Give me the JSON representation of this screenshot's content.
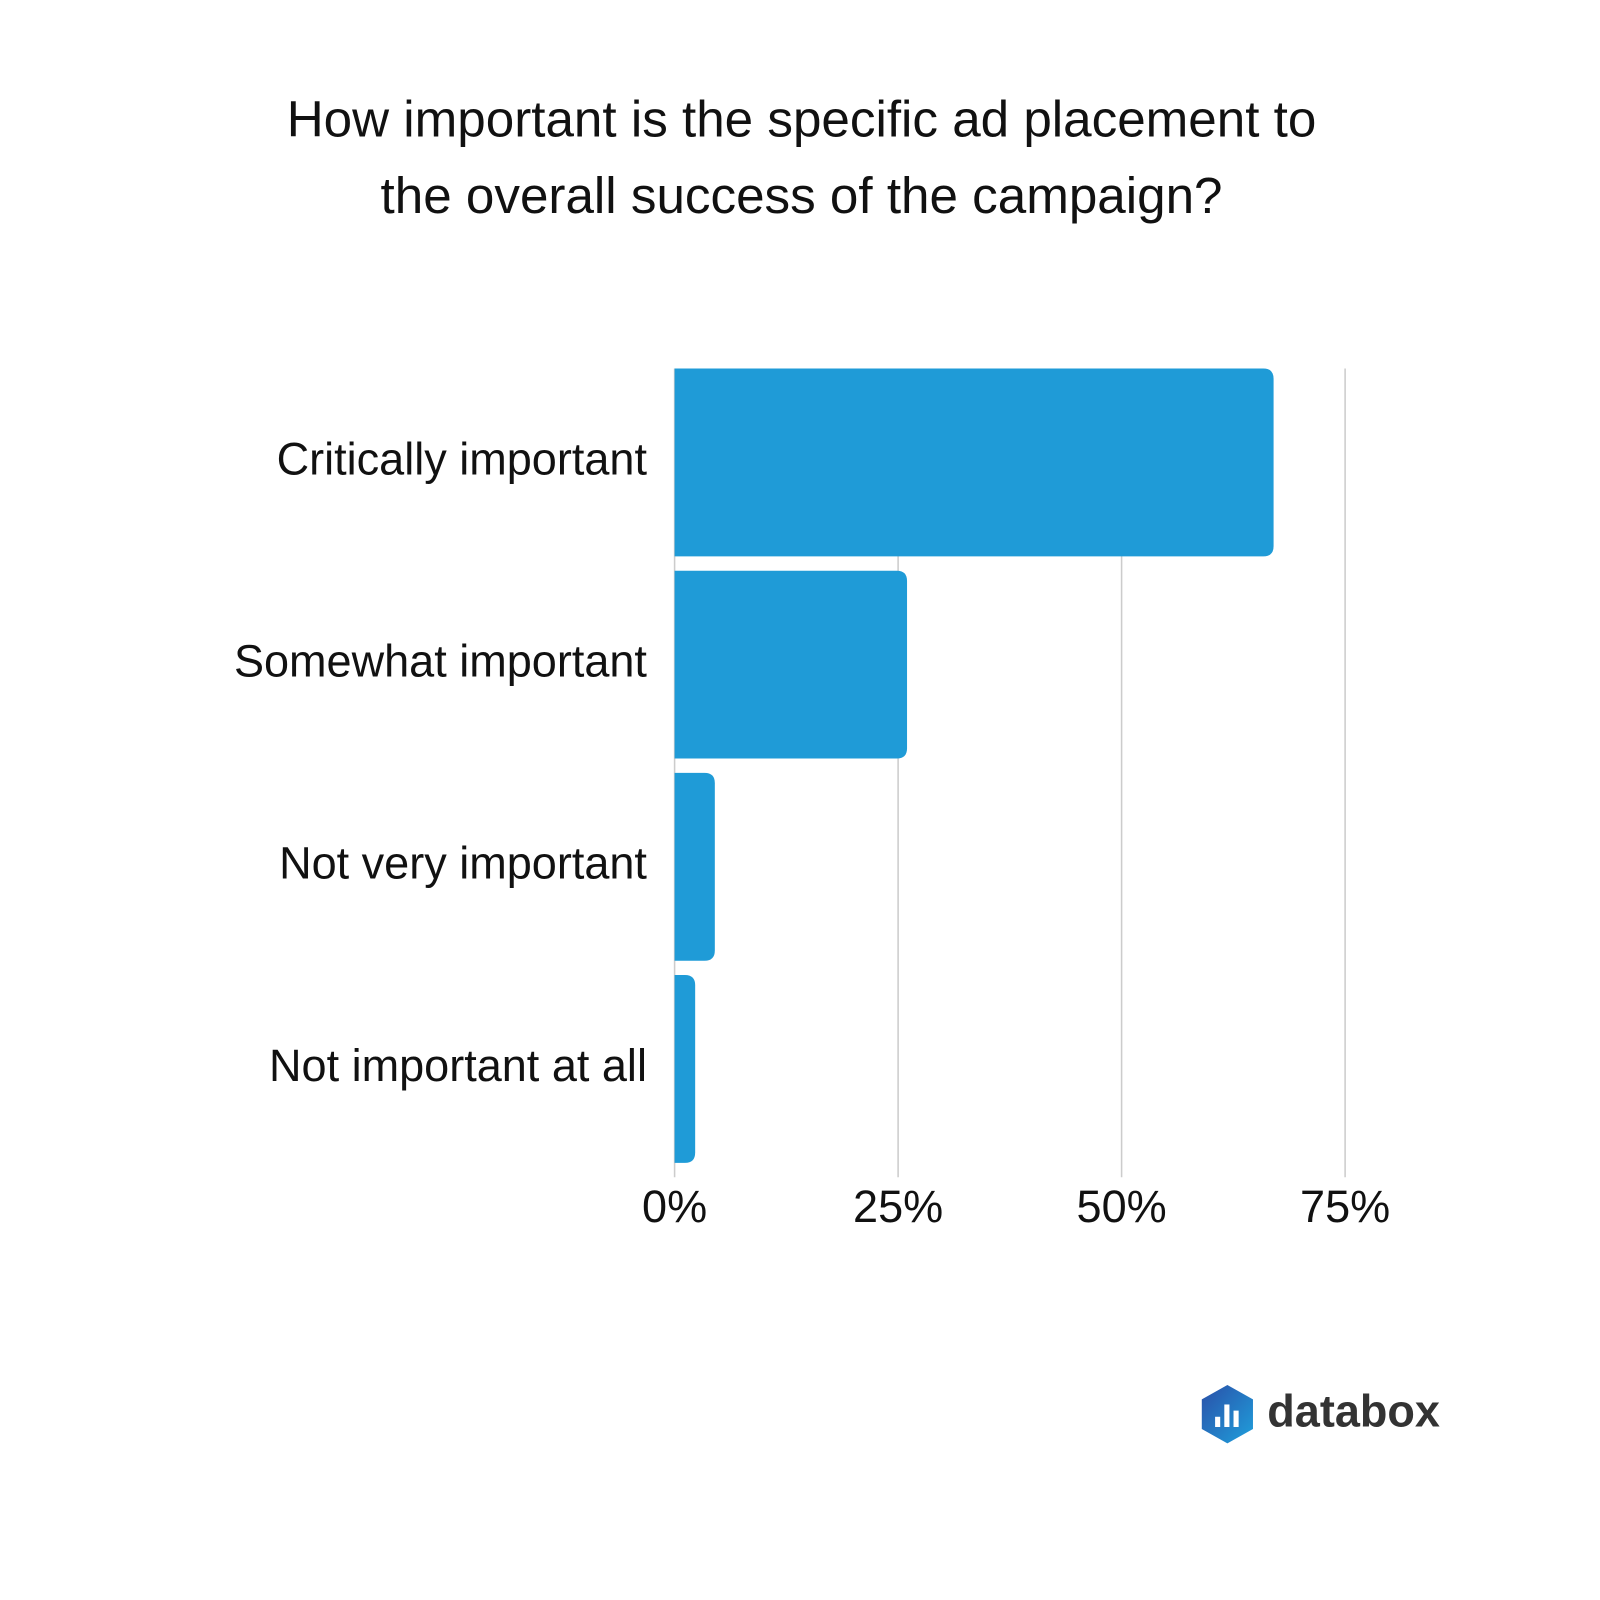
{
  "chart_data": {
    "type": "bar",
    "orientation": "horizontal",
    "title": [
      "How important is the specific ad placement to",
      "the overall success of the campaign?"
    ],
    "categories": [
      "Critically important",
      "Somewhat important",
      "Not very important",
      "Not important at all"
    ],
    "values": [
      67,
      26,
      4.5,
      2.3
    ],
    "color": "#1f9bd7",
    "xlim": [
      0,
      75
    ],
    "xticks": [
      {
        "value": 0,
        "label": "0%"
      },
      {
        "value": 25,
        "label": "25%"
      },
      {
        "value": 50,
        "label": "50%"
      },
      {
        "value": 75,
        "label": "75%"
      }
    ],
    "grid": true,
    "brand": "databox"
  }
}
